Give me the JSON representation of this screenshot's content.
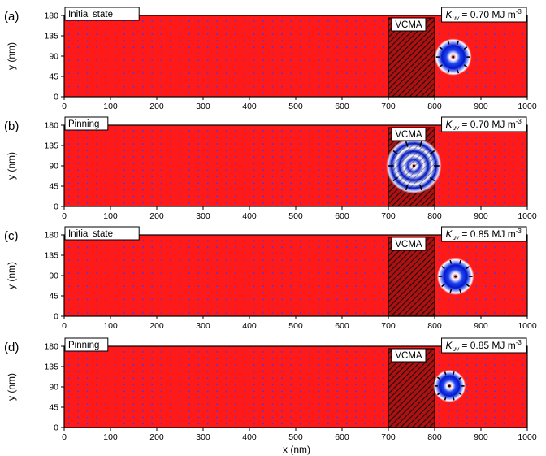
{
  "figure": {
    "xlabel": "x (nm)",
    "panels": [
      {
        "label": "(a)",
        "state": "Initial state",
        "region_label": "VCMA",
        "kuv_value": "0.70",
        "kuv_unit": "MJ m",
        "skyrmion": {
          "x_nm": 840,
          "y_nm": 88,
          "outer_radius_nm": 40,
          "ring_radius_nm": 25,
          "ring_count": 1
        }
      },
      {
        "label": "(b)",
        "state": "Pinning",
        "region_label": "VCMA",
        "kuv_value": "0.70",
        "kuv_unit": "MJ m",
        "skyrmion": {
          "x_nm": 755,
          "y_nm": 90,
          "outer_radius_nm": 60,
          "ring_radius_nm": 40,
          "ring_count": 2
        }
      },
      {
        "label": "(c)",
        "state": "Initial state",
        "region_label": "VCMA",
        "kuv_value": "0.85",
        "kuv_unit": "MJ m",
        "skyrmion": {
          "x_nm": 845,
          "y_nm": 88,
          "outer_radius_nm": 40,
          "ring_radius_nm": 25,
          "ring_count": 1
        }
      },
      {
        "label": "(d)",
        "state": "Pinning",
        "region_label": "VCMA",
        "kuv_value": "0.85",
        "kuv_unit": "MJ m",
        "skyrmion": {
          "x_nm": 832,
          "y_nm": 92,
          "outer_radius_nm": 35,
          "ring_radius_nm": 22,
          "ring_count": 1
        }
      }
    ],
    "axes": {
      "x_range": [
        0,
        1000
      ],
      "y_range": [
        0,
        180
      ],
      "x_ticks": [
        0,
        100,
        200,
        300,
        400,
        500,
        600,
        700,
        800,
        900,
        1000
      ],
      "y_ticks": [
        0,
        45,
        90,
        135,
        180
      ],
      "ylabel": "y (nm)",
      "vcma_region": [
        700,
        800
      ]
    },
    "colors": {
      "background": "#ff1a1a",
      "grid_dot": "#3a3aff",
      "skyrmion_ring": "#0022dd",
      "skyrmion_halo": "#ffffff",
      "frame": "#000000"
    }
  }
}
